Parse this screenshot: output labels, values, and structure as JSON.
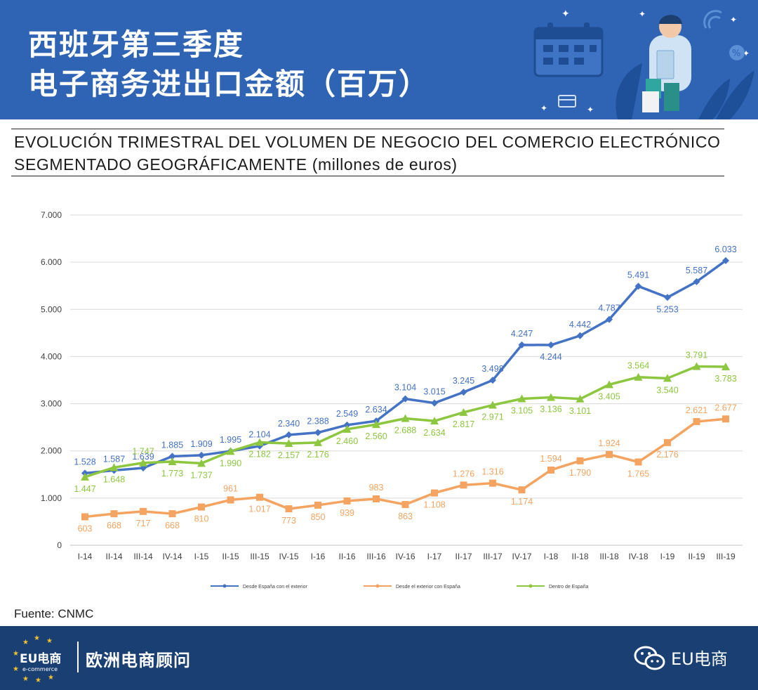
{
  "header": {
    "title_line1": "西班牙第三季度",
    "title_line2": "电子商务进出口金额（百万）",
    "background": "#2f63b4"
  },
  "figure": {
    "title_line1": "EVOLUCIÓN TRIMESTRAL DEL VOLUMEN DE NEGOCIO DEL COMERCIO ELECTRÓNICO",
    "title_line2_caps": "SEGMENTADO GEOGRÁFICAMENTE",
    "title_line2_units": " (millones de euros)",
    "source": "Fuente: CNMC"
  },
  "chart_data": {
    "type": "line",
    "categories": [
      "I-14",
      "II-14",
      "III-14",
      "IV-14",
      "I-15",
      "II-15",
      "III-15",
      "IV-15",
      "I-16",
      "II-16",
      "III-16",
      "IV-16",
      "I-17",
      "II-17",
      "III-17",
      "IV-17",
      "I-18",
      "II-18",
      "III-18",
      "IV-18",
      "I-19",
      "II-19",
      "III-19"
    ],
    "ylim": [
      0,
      7000
    ],
    "yticks": [
      0,
      1000,
      2000,
      3000,
      4000,
      5000,
      6000,
      7000
    ],
    "ytick_labels": [
      "0",
      "1.000",
      "2.000",
      "3.000",
      "4.000",
      "5.000",
      "6.000",
      "7.000"
    ],
    "grid": true,
    "legend_position": "bottom",
    "series": [
      {
        "name": "Desde España con el exterior",
        "color": "#4472c4",
        "marker": "diamond",
        "values": [
          1528,
          1587,
          1639,
          1885,
          1909,
          1995,
          2104,
          2340,
          2388,
          2549,
          2634,
          3104,
          3015,
          3245,
          3498,
          4247,
          4244,
          4442,
          4787,
          5491,
          5253,
          5587,
          6033
        ],
        "labels": [
          "1.528",
          "1.587",
          "1.639",
          "1.885",
          "1.909",
          "1.995",
          "2.104",
          "2.340",
          "2.388",
          "2.549",
          "2.634",
          "3.104",
          "3.015",
          "3.245",
          "3.498",
          "4.247",
          "4.244",
          "4.442",
          "4.787",
          "5.491",
          "5.253",
          "5.587",
          "6.033"
        ]
      },
      {
        "name": "Desde el exterior con España",
        "color": "#f4a460",
        "marker": "square",
        "values": [
          603,
          668,
          717,
          668,
          810,
          961,
          1017,
          773,
          850,
          939,
          983,
          863,
          1108,
          1276,
          1316,
          1174,
          1594,
          1790,
          1924,
          1765,
          2176,
          2621,
          2677
        ],
        "labels": [
          "603",
          "668",
          "717",
          "668",
          "810",
          "961",
          "1.017",
          "773",
          "850",
          "939",
          "983",
          "863",
          "1.108",
          "1.276",
          "1.316",
          "1.174",
          "1.594",
          "1.790",
          "1.924",
          "1.765",
          "2.176",
          "2.621",
          "2.677"
        ]
      },
      {
        "name": "Dentro de España",
        "color": "#8dc63f",
        "marker": "triangle",
        "values": [
          1447,
          1648,
          1747,
          1773,
          1737,
          1990,
          2182,
          2157,
          2176,
          2460,
          2560,
          2688,
          2634,
          2817,
          2971,
          3105,
          3136,
          3101,
          3405,
          3564,
          3540,
          3791,
          3783
        ],
        "labels": [
          "1.447",
          "1.648",
          "1.747",
          "1.773",
          "1.737",
          "1.990",
          "2.182",
          "2.157",
          "2.176",
          "2.460",
          "2.560",
          "2.688",
          "2.634",
          "2.817",
          "2.971",
          "3.105",
          "3.136",
          "3.101",
          "3.405",
          "3.564",
          "3.540",
          "3.791",
          "3.783"
        ]
      }
    ]
  },
  "footer": {
    "logo_text": "EU电商",
    "logo_sub": "e-commerce",
    "brand_name": "欧洲电商顾问",
    "wechat_account": "EU电商",
    "background": "#1a3f72"
  }
}
